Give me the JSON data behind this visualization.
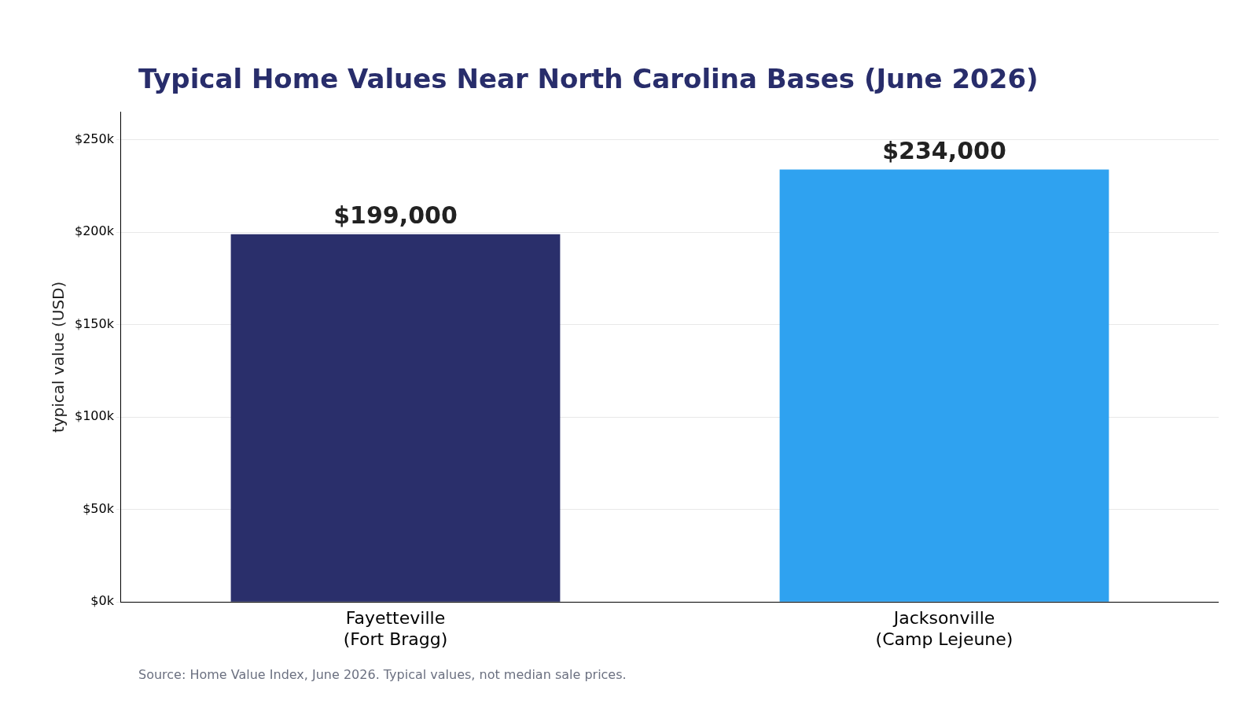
{
  "chart_data": {
    "type": "bar",
    "title": "Typical Home Values Near North Carolina Bases (June 2026)",
    "ylabel": "typical value (USD)",
    "annotations": [
      "Source: Home Value Index, June 2026. Typical values, not median sale prices."
    ],
    "categories": [
      "Fayetteville\n(Fort Bragg)",
      "Jacksonville\n(Camp Lejeune)"
    ],
    "values": [
      199000,
      234000
    ],
    "colors": [
      "#2a2f6b",
      "#2fa2f0"
    ],
    "value_labels": [
      "$199,000",
      "$234,000"
    ],
    "ylim": [
      0,
      265000
    ],
    "yticks": [
      {
        "value": 0,
        "label": "$0k"
      },
      {
        "value": 50000,
        "label": "$50k"
      },
      {
        "value": 100000,
        "label": "$100k"
      },
      {
        "value": 150000,
        "label": "$150k"
      },
      {
        "value": 200000,
        "label": "$200k"
      },
      {
        "value": 250000,
        "label": "$250k"
      }
    ],
    "grid": "y",
    "legend": false
  }
}
